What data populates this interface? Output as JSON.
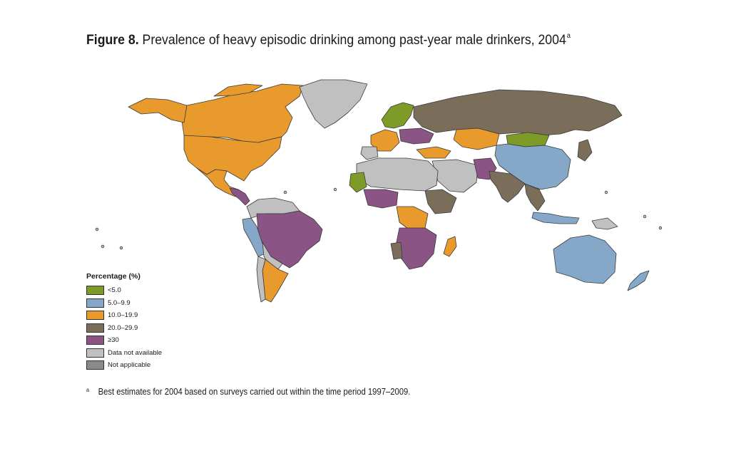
{
  "title": {
    "figure_label": "Figure 8.",
    "text": "Prevalence of heavy episodic drinking among past-year male drinkers, 2004",
    "superscript": "a"
  },
  "legend": {
    "title": "Percentage (%)",
    "items": [
      {
        "label": "<5.0",
        "color": "#7e9a27"
      },
      {
        "label": "5.0–9.9",
        "color": "#86a8c8"
      },
      {
        "label": "10.0–19.9",
        "color": "#e89a2c"
      },
      {
        "label": "20.0–29.9",
        "color": "#7a6e5a"
      },
      {
        "label": "≥30",
        "color": "#8a5585"
      },
      {
        "label": "Data not available",
        "color": "#c0c0c0"
      },
      {
        "label": "Not applicable",
        "color": "#8a8a8a"
      }
    ]
  },
  "footnote": {
    "mark": "a",
    "text": "Best estimates for 2004 based on surveys carried out within the time period 1997–2009."
  },
  "map": {
    "regions": [
      {
        "name": "Canada",
        "category": "10.0–19.9"
      },
      {
        "name": "United States",
        "category": "10.0–19.9"
      },
      {
        "name": "Mexico",
        "category": "10.0–19.9"
      },
      {
        "name": "Greenland",
        "category": "Data not available"
      },
      {
        "name": "Brazil",
        "category": "≥30"
      },
      {
        "name": "Argentina",
        "category": "10.0–19.9"
      },
      {
        "name": "Russia",
        "category": "20.0–29.9"
      },
      {
        "name": "China",
        "category": "5.0–9.9"
      },
      {
        "name": "Mongolia",
        "category": "<5.0"
      },
      {
        "name": "Kazakhstan",
        "category": "10.0–19.9"
      },
      {
        "name": "India",
        "category": "20.0–29.9"
      },
      {
        "name": "Australia",
        "category": "5.0–9.9"
      },
      {
        "name": "Madagascar",
        "category": "10.0–19.9"
      },
      {
        "name": "Sweden",
        "category": "<5.0"
      },
      {
        "name": "Turkey",
        "category": "10.0–19.9"
      },
      {
        "name": "Mauritania",
        "category": "<5.0"
      }
    ]
  }
}
